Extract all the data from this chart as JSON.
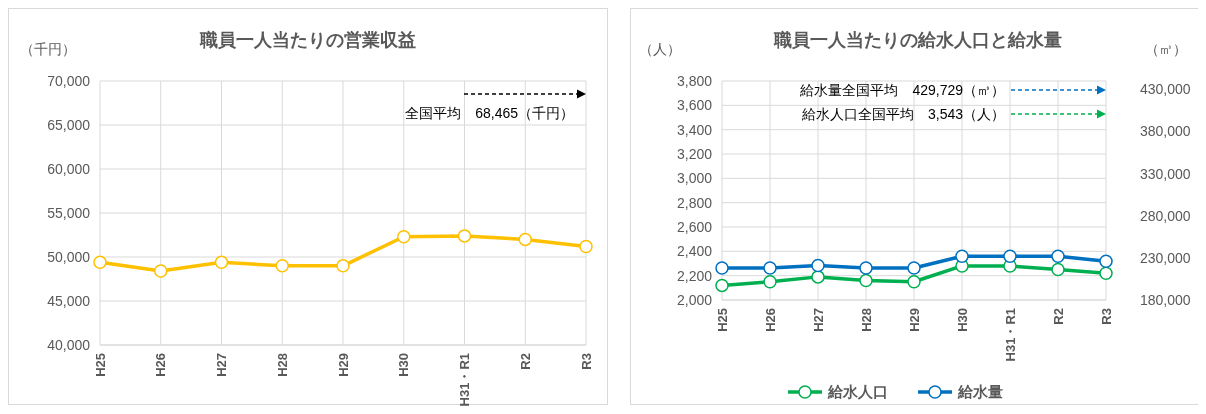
{
  "chart_data": [
    {
      "type": "line",
      "title": "職員一人当たりの営業収益",
      "ylabel": "（千円）",
      "categories": [
        "H25",
        "H26",
        "H27",
        "H28",
        "H29",
        "H30",
        "H31・R1",
        "R2",
        "R3"
      ],
      "series": [
        {
          "color": "#ffc000",
          "values": [
            49400,
            48400,
            49400,
            49000,
            49000,
            52300,
            52400,
            52000,
            51200
          ]
        }
      ],
      "ylim": [
        40000,
        70000
      ],
      "yticks": [
        {
          "value": 40000,
          "label": "40,000"
        },
        {
          "value": 45000,
          "label": "45,000"
        },
        {
          "value": 50000,
          "label": "50,000"
        },
        {
          "value": 55000,
          "label": "55,000"
        },
        {
          "value": 60000,
          "label": "60,000"
        },
        {
          "value": 65000,
          "label": "65,000"
        },
        {
          "value": 70000,
          "label": "70,000"
        }
      ],
      "annotations": [
        "全国平均　68,465（千円）"
      ],
      "grid": true,
      "marker": "circle",
      "legend": false
    },
    {
      "type": "line",
      "title": "職員一人当たりの給水人口と給水量",
      "ylabel": "（人）",
      "y2label": "（㎥）",
      "categories": [
        "H25",
        "H26",
        "H27",
        "H28",
        "H29",
        "H30",
        "H31・R1",
        "R2",
        "R3"
      ],
      "series": [
        {
          "name": "給水人口",
          "color": "#00b050",
          "values": [
            2120,
            2150,
            2190,
            2160,
            2150,
            2280,
            2280,
            2250,
            2220
          ]
        },
        {
          "name": "給水量",
          "color": "#0070c0",
          "axis": "y2",
          "values": [
            218000,
            218000,
            221000,
            218000,
            218000,
            232000,
            232000,
            232000,
            226000
          ]
        }
      ],
      "ylim": [
        2000,
        3800
      ],
      "yticks": [
        {
          "value": 2000,
          "label": "2,000"
        },
        {
          "value": 2200,
          "label": "2,200"
        },
        {
          "value": 2400,
          "label": "2,400"
        },
        {
          "value": 2600,
          "label": "2,600"
        },
        {
          "value": 2800,
          "label": "2,800"
        },
        {
          "value": 3000,
          "label": "3,000"
        },
        {
          "value": 3200,
          "label": "3,200"
        },
        {
          "value": 3400,
          "label": "3,400"
        },
        {
          "value": 3600,
          "label": "3,600"
        },
        {
          "value": 3800,
          "label": "3,800"
        }
      ],
      "y2lim": [
        180000,
        440000
      ],
      "y2ticks": [
        {
          "value": 180000,
          "label": "180,000"
        },
        {
          "value": 230000,
          "label": "230,000"
        },
        {
          "value": 280000,
          "label": "280,000"
        },
        {
          "value": 330000,
          "label": "330,000"
        },
        {
          "value": 380000,
          "label": "380,000"
        },
        {
          "value": 430000,
          "label": "430,000"
        }
      ],
      "annotations": [
        "給水量全国平均　429,729（㎥）",
        "給水人口全国平均　3,543（人）"
      ],
      "grid": true,
      "marker": "circle",
      "legend": "bottom"
    }
  ]
}
